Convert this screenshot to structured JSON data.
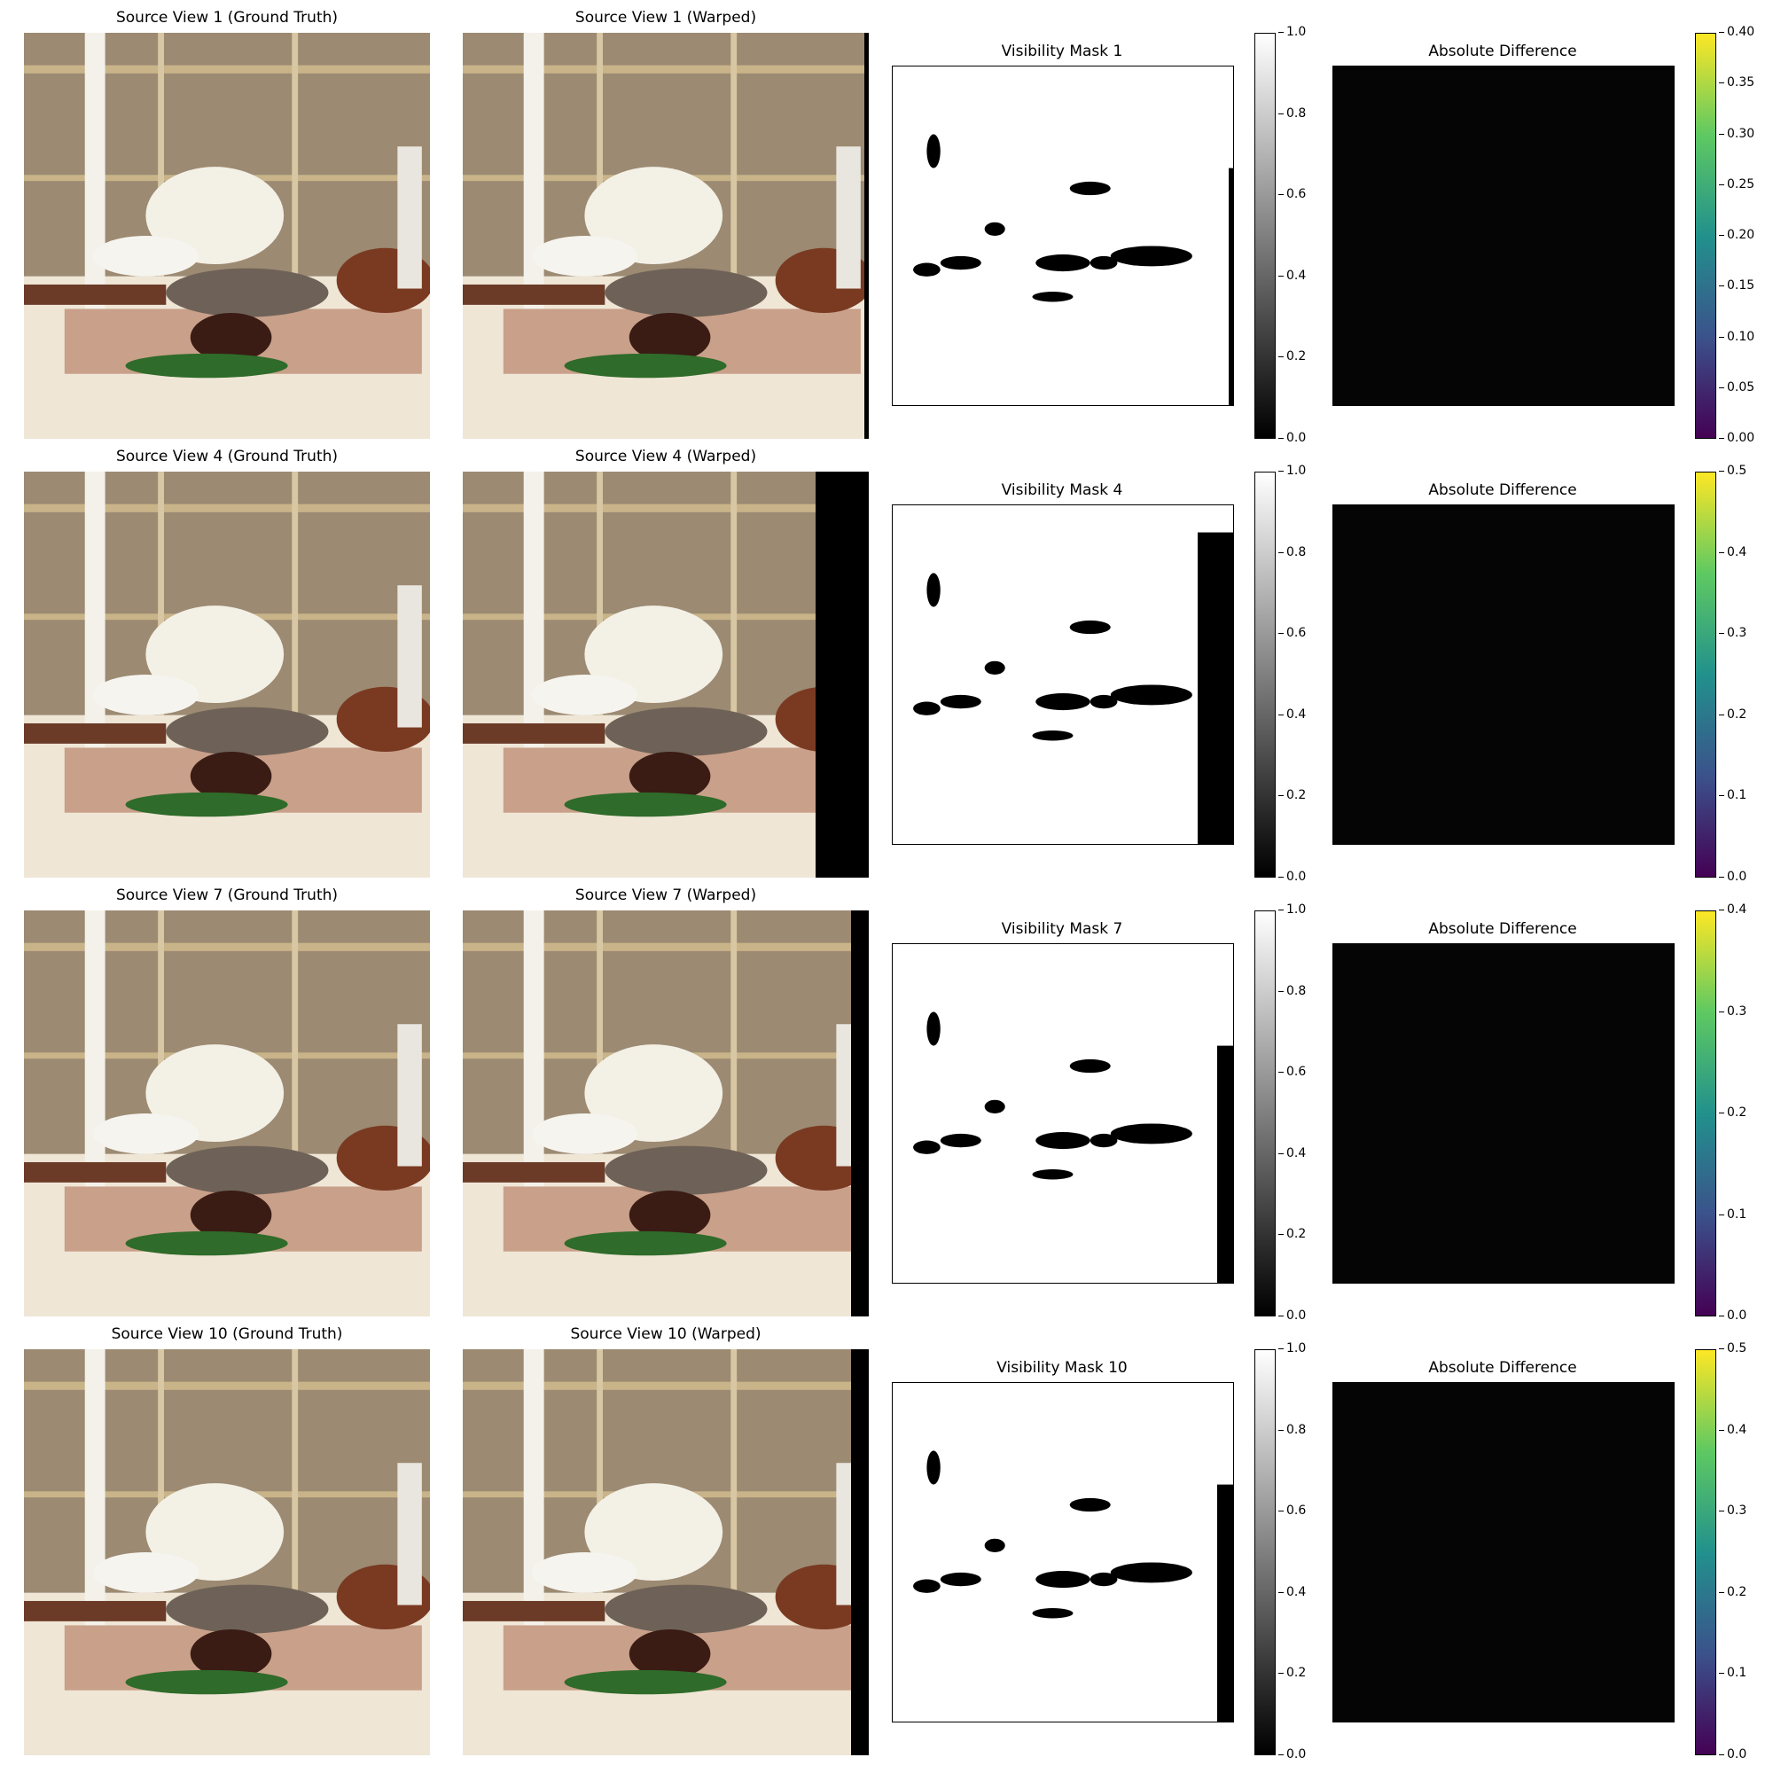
{
  "rows": [
    {
      "gt_title": "Source View 1 (Ground Truth)",
      "warped_title": "Source View 1 (Warped)",
      "mask_title": "Visibility Mask 1",
      "diff_title": "Absolute Difference",
      "warp_right_black": "thin",
      "mask_colorbar_ticks": [
        "1.0",
        "0.8",
        "0.6",
        "0.4",
        "0.2",
        "0.0"
      ],
      "diff_colorbar_ticks": [
        "0.40",
        "0.35",
        "0.30",
        "0.25",
        "0.20",
        "0.15",
        "0.10",
        "0.05",
        "0.00"
      ]
    },
    {
      "gt_title": "Source View 4 (Ground Truth)",
      "warped_title": "Source View 4 (Warped)",
      "mask_title": "Visibility Mask 4",
      "diff_title": "Absolute Difference",
      "warp_right_black": "wide",
      "mask_colorbar_ticks": [
        "1.0",
        "0.8",
        "0.6",
        "0.4",
        "0.2",
        "0.0"
      ],
      "diff_colorbar_ticks": [
        "0.5",
        "0.4",
        "0.3",
        "0.2",
        "0.1",
        "0.0"
      ]
    },
    {
      "gt_title": "Source View 7 (Ground Truth)",
      "warped_title": "Source View 7 (Warped)",
      "mask_title": "Visibility Mask 7",
      "diff_title": "Absolute Difference",
      "warp_right_black": "medium",
      "mask_colorbar_ticks": [
        "1.0",
        "0.8",
        "0.6",
        "0.4",
        "0.2",
        "0.0"
      ],
      "diff_colorbar_ticks": [
        "0.4",
        "0.3",
        "0.2",
        "0.1",
        "0.0"
      ]
    },
    {
      "gt_title": "Source View 10 (Ground Truth)",
      "warped_title": "Source View 10 (Warped)",
      "mask_title": "Visibility Mask 10",
      "diff_title": "Absolute Difference",
      "warp_right_black": "medium",
      "mask_colorbar_ticks": [
        "1.0",
        "0.8",
        "0.6",
        "0.4",
        "0.2",
        "0.0"
      ],
      "diff_colorbar_ticks": [
        "0.5",
        "0.4",
        "0.3",
        "0.2",
        "0.1",
        "0.0"
      ]
    }
  ],
  "colors": {
    "background": "#ffffff",
    "mask_occluded": "#000000",
    "diff_background": "#050505"
  },
  "colormaps": [
    "gray",
    "viridis"
  ]
}
